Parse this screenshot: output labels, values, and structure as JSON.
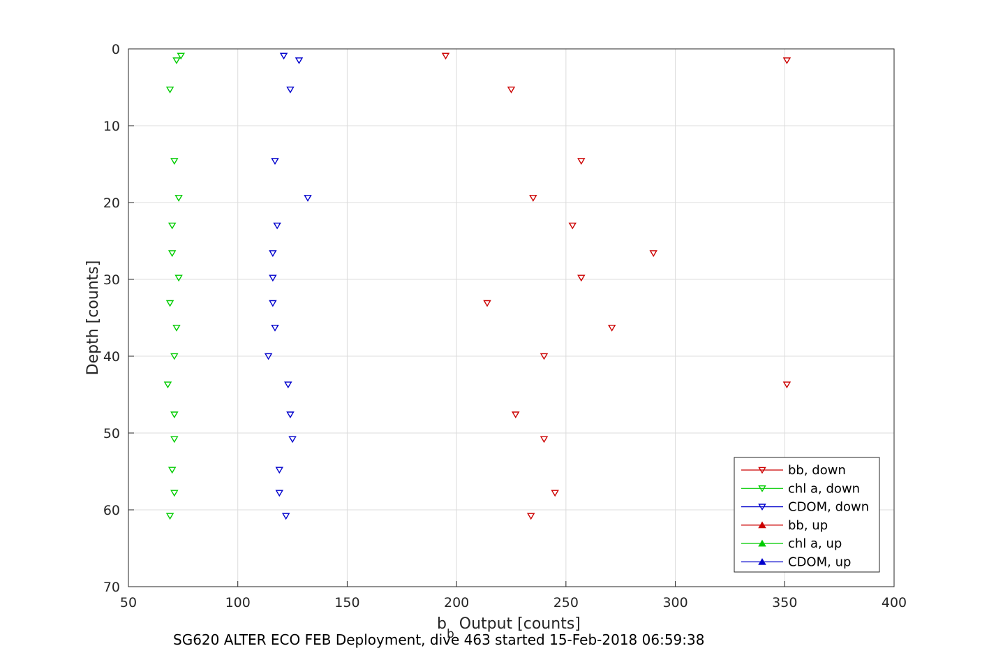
{
  "chart_data": {
    "type": "scatter",
    "title": "",
    "xlabel_main": "b",
    "xlabel_sub": "b",
    "xlabel_rest": " Output [counts]",
    "ylabel": "Depth [counts]",
    "xlim": [
      50,
      400
    ],
    "ylim": [
      0,
      70
    ],
    "y_reversed": true,
    "grid": true,
    "x_ticks": [
      "50",
      "100",
      "150",
      "200",
      "250",
      "300",
      "350",
      "400"
    ],
    "y_ticks": [
      "0",
      "10",
      "20",
      "30",
      "40",
      "50",
      "60",
      "70"
    ],
    "legend_position": "bottom-right",
    "series": [
      {
        "name": "bb, down",
        "color": "#cc0000",
        "marker": "triangle-down",
        "points": [
          [
            195,
            0.9
          ],
          [
            351,
            1.5
          ],
          [
            225,
            5.3
          ],
          [
            257,
            14.6
          ],
          [
            235,
            19.4
          ],
          [
            253,
            23
          ],
          [
            290,
            26.6
          ],
          [
            257,
            29.8
          ],
          [
            214,
            33.1
          ],
          [
            271,
            36.3
          ],
          [
            240,
            40
          ],
          [
            351,
            43.7
          ],
          [
            227,
            47.6
          ],
          [
            240,
            50.8
          ],
          [
            245,
            57.8
          ],
          [
            234,
            60.8
          ]
        ]
      },
      {
        "name": "chl a, down",
        "color": "#00cc00",
        "marker": "triangle-down",
        "points": [
          [
            74,
            0.9
          ],
          [
            72,
            1.5
          ],
          [
            69,
            5.3
          ],
          [
            71,
            14.6
          ],
          [
            73,
            19.4
          ],
          [
            70,
            23
          ],
          [
            70,
            26.6
          ],
          [
            73,
            29.8
          ],
          [
            69,
            33.1
          ],
          [
            72,
            36.3
          ],
          [
            71,
            40
          ],
          [
            68,
            43.7
          ],
          [
            71,
            47.6
          ],
          [
            71,
            50.8
          ],
          [
            70,
            54.8
          ],
          [
            71,
            57.8
          ],
          [
            69,
            60.8
          ]
        ]
      },
      {
        "name": "CDOM, down",
        "color": "#0000cc",
        "marker": "triangle-down",
        "points": [
          [
            121,
            0.9
          ],
          [
            128,
            1.5
          ],
          [
            124,
            5.3
          ],
          [
            117,
            14.6
          ],
          [
            132,
            19.4
          ],
          [
            118,
            23
          ],
          [
            116,
            26.6
          ],
          [
            116,
            29.8
          ],
          [
            116,
            33.1
          ],
          [
            117,
            36.3
          ],
          [
            114,
            40
          ],
          [
            123,
            43.7
          ],
          [
            124,
            47.6
          ],
          [
            125,
            50.8
          ],
          [
            119,
            54.8
          ],
          [
            119,
            57.8
          ],
          [
            122,
            60.8
          ]
        ]
      },
      {
        "name": "bb, up",
        "color": "#cc0000",
        "marker": "triangle-up",
        "points": []
      },
      {
        "name": "chl a, up",
        "color": "#00cc00",
        "marker": "triangle-up",
        "points": []
      },
      {
        "name": "CDOM, up",
        "color": "#0000cc",
        "marker": "triangle-up",
        "points": []
      }
    ]
  },
  "caption": "SG620 ALTER ECO FEB Deployment, dive 463 started 15-Feb-2018 06:59:38"
}
